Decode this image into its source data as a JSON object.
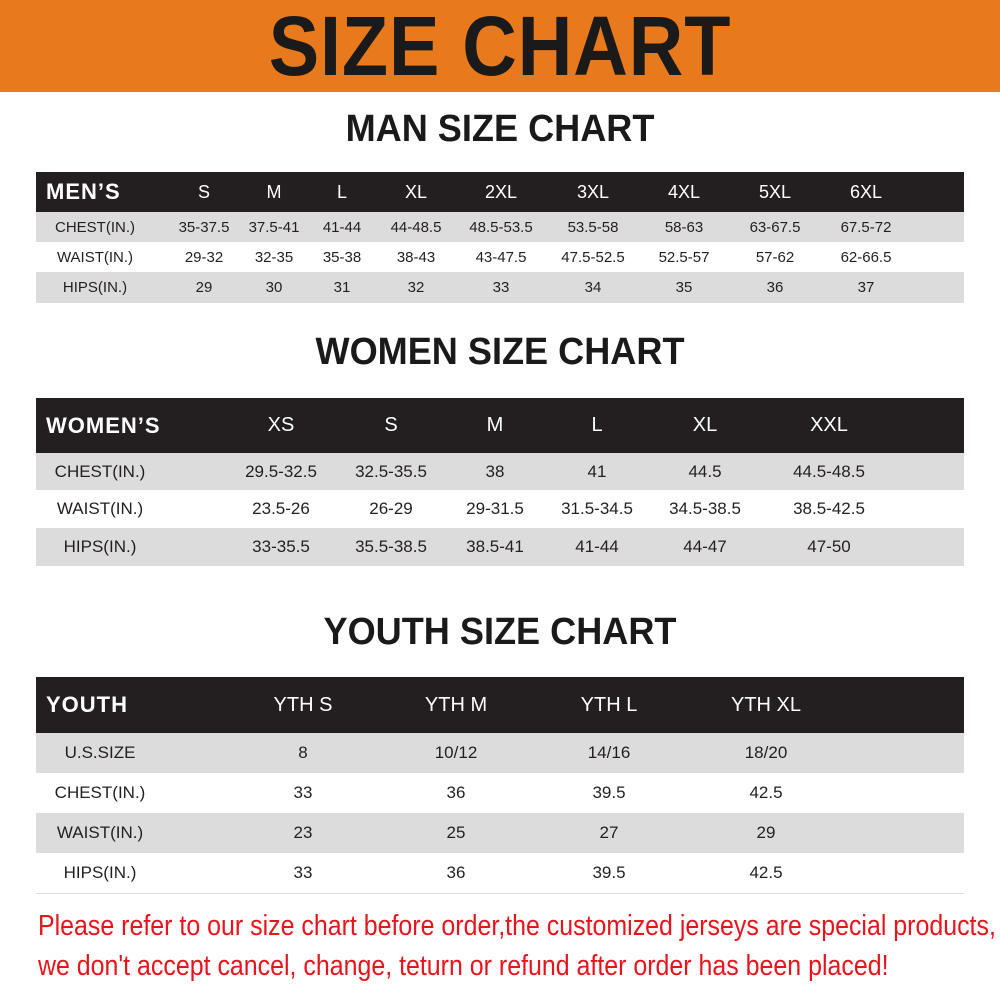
{
  "banner": {
    "title": "SIZE CHART",
    "color": "#e8791d"
  },
  "men": {
    "title": "MAN SIZE CHART",
    "header": [
      "MEN’S",
      "S",
      "M",
      "L",
      "XL",
      "2XL",
      "3XL",
      "4XL",
      "5XL",
      "6XL"
    ],
    "rows": [
      [
        "CHEST(IN.)",
        "35-37.5",
        "37.5-41",
        "41-44",
        "44-48.5",
        "48.5-53.5",
        "53.5-58",
        "58-63",
        "63-67.5",
        "67.5-72"
      ],
      [
        "WAIST(IN.)",
        "29-32",
        "32-35",
        "35-38",
        "38-43",
        "43-47.5",
        "47.5-52.5",
        "52.5-57",
        "57-62",
        "62-66.5"
      ],
      [
        "HIPS(IN.)",
        "29",
        "30",
        "31",
        "32",
        "33",
        "34",
        "35",
        "36",
        "37"
      ]
    ]
  },
  "women": {
    "title": "WOMEN SIZE CHART",
    "header": [
      "WOMEN’S",
      "XS",
      "S",
      "M",
      "L",
      "XL",
      "XXL"
    ],
    "rows": [
      [
        "CHEST(IN.)",
        "29.5-32.5",
        "32.5-35.5",
        "38",
        "41",
        "44.5",
        "44.5-48.5"
      ],
      [
        "WAIST(IN.)",
        "23.5-26",
        "26-29",
        "29-31.5",
        "31.5-34.5",
        "34.5-38.5",
        "38.5-42.5"
      ],
      [
        "HIPS(IN.)",
        "33-35.5",
        "35.5-38.5",
        "38.5-41",
        "41-44",
        "44-47",
        "47-50"
      ]
    ]
  },
  "youth": {
    "title": "YOUTH SIZE CHART",
    "header": [
      "YOUTH",
      "YTH S",
      "YTH M",
      "YTH L",
      "YTH XL"
    ],
    "rows": [
      [
        "U.S.SIZE",
        "8",
        "10/12",
        "14/16",
        "18/20"
      ],
      [
        "CHEST(IN.)",
        "33",
        "36",
        "39.5",
        "42.5"
      ],
      [
        "WAIST(IN.)",
        "23",
        "25",
        "27",
        "29"
      ],
      [
        "HIPS(IN.)",
        "33",
        "36",
        "39.5",
        "42.5"
      ]
    ]
  },
  "notice": {
    "line1": "Please refer to our size chart before order,the customized jerseys are special products,",
    "line2": "we don't accept cancel, change, teturn or refund after order has been placed!",
    "color": "#e8141b"
  }
}
